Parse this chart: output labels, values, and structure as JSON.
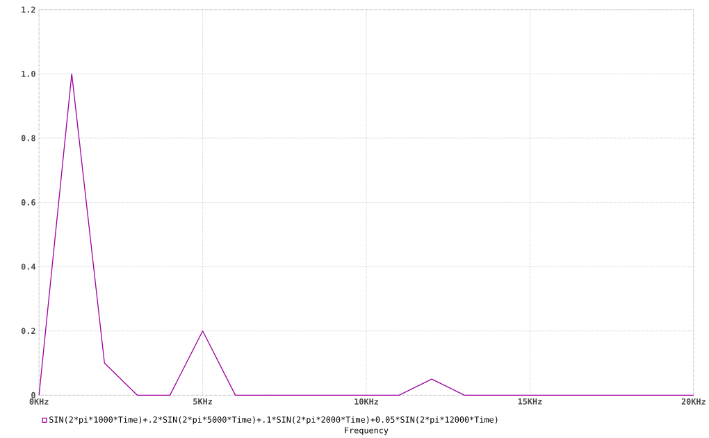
{
  "chart_data": {
    "type": "line",
    "xlabel": "Frequency",
    "x": [
      0,
      1,
      2,
      3,
      4,
      5,
      6,
      11,
      12,
      13,
      20
    ],
    "series": [
      {
        "name": "SIN(2*pi*1000*Time)+.2*SIN(2*pi*5000*Time)+.1*SIN(2*pi*2000*Time)+0.05*SIN(2*pi*12000*Time)",
        "color": "#a000a0",
        "values": [
          0,
          1.0,
          0.1,
          0,
          0,
          0.2,
          0,
          0,
          0.05,
          0,
          0
        ]
      }
    ],
    "xlim": [
      0,
      20
    ],
    "xticks": [
      {
        "value": 0,
        "label": "0KHz"
      },
      {
        "value": 5,
        "label": "5KHz"
      },
      {
        "value": 10,
        "label": "10KHz"
      },
      {
        "value": 15,
        "label": "15KHz"
      },
      {
        "value": 20,
        "label": "20KHz"
      }
    ],
    "ylim": [
      0,
      1.2
    ],
    "yticks": [
      0,
      0.2,
      0.4,
      0.6,
      0.8,
      {
        "value": 1.0,
        "label": "1.0"
      },
      1.2
    ],
    "grid": true,
    "legend": "bottom left"
  }
}
